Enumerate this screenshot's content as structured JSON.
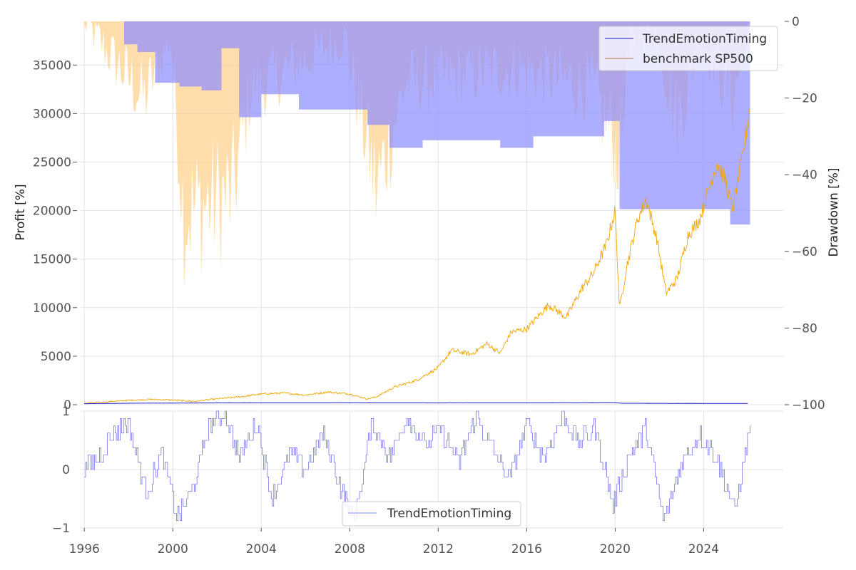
{
  "chart_data": [
    {
      "type": "line",
      "panel": "top",
      "title": "",
      "xlabel": "",
      "ylabel": "Profit [%]",
      "y2label": "Drawdown [%]",
      "xlim": [
        1995.8,
        2027.6
      ],
      "ylim": [
        0,
        39500
      ],
      "y2lim": [
        -100,
        0
      ],
      "x_ticks": [
        "1996",
        "2000",
        "2004",
        "2008",
        "2012",
        "2016",
        "2020",
        "2024"
      ],
      "y_ticks": [
        "0",
        "5000",
        "10000",
        "15000",
        "20000",
        "25000",
        "30000",
        "35000"
      ],
      "y2_ticks": [
        "0",
        "−20",
        "−40",
        "−60",
        "−80",
        "−100"
      ],
      "legend": {
        "position": "top-right",
        "entries": [
          "TrendEmotionTiming",
          "benchmark SP500"
        ]
      },
      "colors": {
        "strategy": "#1a1acc",
        "benchmark": "#f0a500",
        "strategy_dd": "#8c8cff",
        "benchmark_dd": "#ffcc80"
      },
      "series": [
        {
          "name": "TrendEmotionTiming",
          "x": [
            1996,
            1998,
            2000,
            2002,
            2004,
            2006,
            2008,
            2010,
            2012,
            2014,
            2016,
            2018,
            2020,
            2020.25,
            2022,
            2024,
            2026
          ],
          "values": [
            100,
            150,
            170,
            190,
            200,
            205,
            210,
            200,
            195,
            200,
            205,
            210,
            220,
            150,
            140,
            130,
            130
          ]
        },
        {
          "name": "benchmark SP500",
          "x": [
            1996,
            1997,
            1998,
            1999,
            2000,
            2001,
            2002,
            2003,
            2004,
            2005,
            2006,
            2007,
            2008,
            2008.8,
            2009.2,
            2010,
            2011,
            2012,
            2012.6,
            2013.5,
            2014.2,
            2014.8,
            2015.3,
            2016,
            2017,
            2017.8,
            2018.5,
            2019,
            2019.6,
            2020,
            2020.2,
            2020.5,
            2021,
            2021.4,
            2021.9,
            2022.3,
            2022.8,
            2023.3,
            2023.8,
            2024.2,
            2024.6,
            2025,
            2025.3,
            2025.8,
            2026.1
          ],
          "values": [
            150,
            300,
            450,
            550,
            480,
            350,
            600,
            800,
            1100,
            1200,
            1000,
            1300,
            1100,
            600,
            800,
            1800,
            2500,
            3800,
            5600,
            5200,
            6300,
            5300,
            7500,
            7800,
            10300,
            9000,
            12000,
            13500,
            16500,
            20000,
            9800,
            14000,
            19000,
            21200,
            17000,
            11500,
            13000,
            17500,
            19000,
            22000,
            25000,
            23000,
            20000,
            26000,
            31000
          ]
        },
        {
          "name": "TrendEmotionTiming drawdown",
          "axis": "y2",
          "x": [
            1996,
            1997.8,
            1998.4,
            1999.2,
            2000.3,
            2001.3,
            2002.2,
            2003,
            2004,
            2005.7,
            2008.8,
            2009.8,
            2011.3,
            2014.8,
            2016.3,
            2019.5,
            2020.2,
            2025.2,
            2026.1
          ],
          "values": [
            0,
            -6,
            -8,
            -16,
            -17,
            -18,
            -7,
            -25,
            -19,
            -23,
            -27,
            -33,
            -31,
            -33,
            -30,
            -26,
            -49,
            -53,
            -53
          ]
        },
        {
          "name": "benchmark SP500 drawdown",
          "axis": "y2",
          "x": [
            1996,
            1998.7,
            1999.9,
            2000.5,
            2002.7,
            2003.5,
            2007.8,
            2009.2,
            2010.5,
            2015.4,
            2018.9,
            2020.2,
            2020.6,
            2021.8,
            2022.8,
            2023.9,
            2025.3,
            2026.1
          ],
          "values": [
            0,
            -20,
            -4,
            -50,
            -45,
            -18,
            -4,
            -44,
            -16,
            -12,
            -17,
            -34,
            -8,
            -2,
            -26,
            -4,
            -20,
            -2
          ]
        }
      ]
    },
    {
      "type": "line",
      "panel": "bottom",
      "ylabel": "",
      "ylim": [
        -1,
        1
      ],
      "y_ticks": [
        "−1",
        "0",
        "1"
      ],
      "legend": {
        "position": "bottom-center",
        "entries": [
          "TrendEmotionTiming"
        ]
      },
      "series": [
        {
          "name": "TrendEmotionTiming",
          "x": [
            1996,
            1996.6,
            1997.3,
            1998,
            1998.8,
            1999.5,
            2000.2,
            2000.9,
            2001.6,
            2002.3,
            2003,
            2003.8,
            2004.5,
            2005.3,
            2006,
            2006.8,
            2007.5,
            2008.2,
            2009,
            2009.8,
            2010.6,
            2011.4,
            2012.1,
            2012.9,
            2013.7,
            2014.5,
            2015.2,
            2016,
            2016.8,
            2017.6,
            2018.3,
            2019.1,
            2019.9,
            2020.6,
            2021.4,
            2022.2,
            2023,
            2023.8,
            2024.6,
            2025.4,
            2026.1
          ],
          "values": [
            0,
            0.2,
            0.6,
            0.8,
            -0.4,
            0.3,
            -0.8,
            -0.3,
            0.7,
            1.0,
            0.2,
            0.8,
            -0.5,
            0.3,
            0.0,
            0.6,
            -0.2,
            -0.9,
            0.8,
            0.2,
            0.9,
            0.4,
            0.7,
            0.1,
            0.9,
            0.3,
            -0.2,
            0.8,
            0.2,
            0.9,
            0.5,
            0.7,
            -0.6,
            0.2,
            0.7,
            -0.9,
            0.1,
            0.6,
            0.2,
            -0.7,
            0.8
          ]
        }
      ]
    }
  ]
}
